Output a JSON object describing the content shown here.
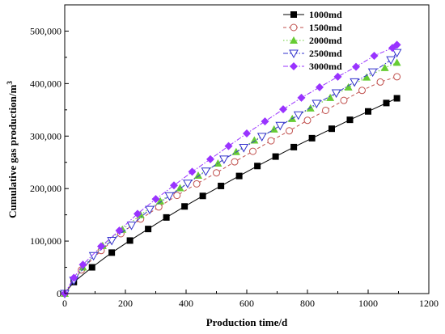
{
  "chart_data": {
    "type": "line",
    "title": "",
    "xlabel": "Production time/d",
    "ylabel": "Cumulative gas production/m",
    "ylabel_sup": "3",
    "xlim": [
      0,
      1200
    ],
    "ylim": [
      0,
      550000
    ],
    "xticks": [
      0,
      200,
      400,
      600,
      800,
      1000,
      1200
    ],
    "xtick_labels": [
      "0",
      "200",
      "400",
      "600",
      "800",
      "1000",
      "1200"
    ],
    "yticks": [
      0,
      100000,
      200000,
      300000,
      400000,
      500000
    ],
    "ytick_labels": [
      "0",
      "100,000",
      "200,000",
      "300,000",
      "400,000",
      "500,000"
    ],
    "grid": false,
    "legend_position": "top-right",
    "x": [
      0,
      30,
      60,
      90,
      120,
      150,
      180,
      210,
      240,
      270,
      300,
      330,
      360,
      390,
      420,
      450,
      480,
      510,
      540,
      570,
      600,
      630,
      660,
      690,
      720,
      750,
      780,
      810,
      840,
      870,
      900,
      930,
      960,
      990,
      1020,
      1050,
      1080,
      1095
    ],
    "series": [
      {
        "name": "1000md",
        "color": "#000000",
        "marker": "square-filled",
        "line_style": "solid",
        "marker_x": [
          0,
          30,
          90,
          155,
          215,
          275,
          335,
          395,
          455,
          515,
          575,
          635,
          695,
          755,
          815,
          880,
          940,
          1000,
          1060,
          1095
        ],
        "marker_y": [
          0,
          22000,
          50000,
          78000,
          101000,
          123000,
          145000,
          166000,
          186000,
          205000,
          224000,
          243000,
          261000,
          279000,
          296000,
          314000,
          331000,
          347000,
          363000,
          372000
        ]
      },
      {
        "name": "1500md",
        "color": "#c0504d",
        "marker": "circle-open",
        "line_style": "dashed",
        "marker_x": [
          0,
          55,
          120,
          185,
          250,
          310,
          370,
          435,
          500,
          560,
          620,
          680,
          740,
          800,
          860,
          920,
          980,
          1040,
          1095
        ],
        "marker_y": [
          0,
          45000,
          82000,
          114000,
          142000,
          165000,
          187000,
          209000,
          230000,
          251000,
          271000,
          291000,
          310000,
          330000,
          349000,
          368000,
          387000,
          403000,
          413000
        ]
      },
      {
        "name": "2000md",
        "color": "#66cc33",
        "marker": "triangle-filled",
        "line_style": "dotted",
        "marker_x": [
          0,
          60,
          125,
          190,
          250,
          315,
          380,
          440,
          505,
          565,
          625,
          690,
          750,
          810,
          875,
          935,
          995,
          1055,
          1095
        ],
        "marker_y": [
          0,
          50000,
          91000,
          122000,
          150000,
          176000,
          201000,
          225000,
          248000,
          270000,
          292000,
          313000,
          333000,
          353000,
          373000,
          393000,
          412000,
          430000,
          440000
        ]
      },
      {
        "name": "2500md",
        "color": "#3333cc",
        "marker": "triangle-down-open",
        "line_style": "dashdot",
        "marker_x": [
          0,
          30,
          95,
          155,
          220,
          280,
          345,
          405,
          465,
          525,
          590,
          650,
          710,
          770,
          830,
          895,
          955,
          1015,
          1075,
          1095
        ],
        "marker_y": [
          0,
          25000,
          72000,
          101000,
          130000,
          160000,
          186000,
          210000,
          233000,
          256000,
          278000,
          299000,
          320000,
          340000,
          362000,
          382000,
          403000,
          422000,
          445000,
          459000
        ]
      },
      {
        "name": "3000md",
        "color": "#9933ff",
        "marker": "diamond-filled",
        "line_style": "dashdot",
        "marker_x": [
          0,
          30,
          60,
          120,
          180,
          240,
          300,
          360,
          420,
          480,
          540,
          600,
          660,
          720,
          780,
          840,
          900,
          960,
          1020,
          1080,
          1095
        ],
        "marker_y": [
          0,
          30000,
          55000,
          90000,
          120000,
          152000,
          180000,
          206000,
          232000,
          256000,
          281000,
          305000,
          328000,
          351000,
          373000,
          393000,
          413000,
          432000,
          453000,
          468000,
          474000
        ]
      }
    ]
  }
}
